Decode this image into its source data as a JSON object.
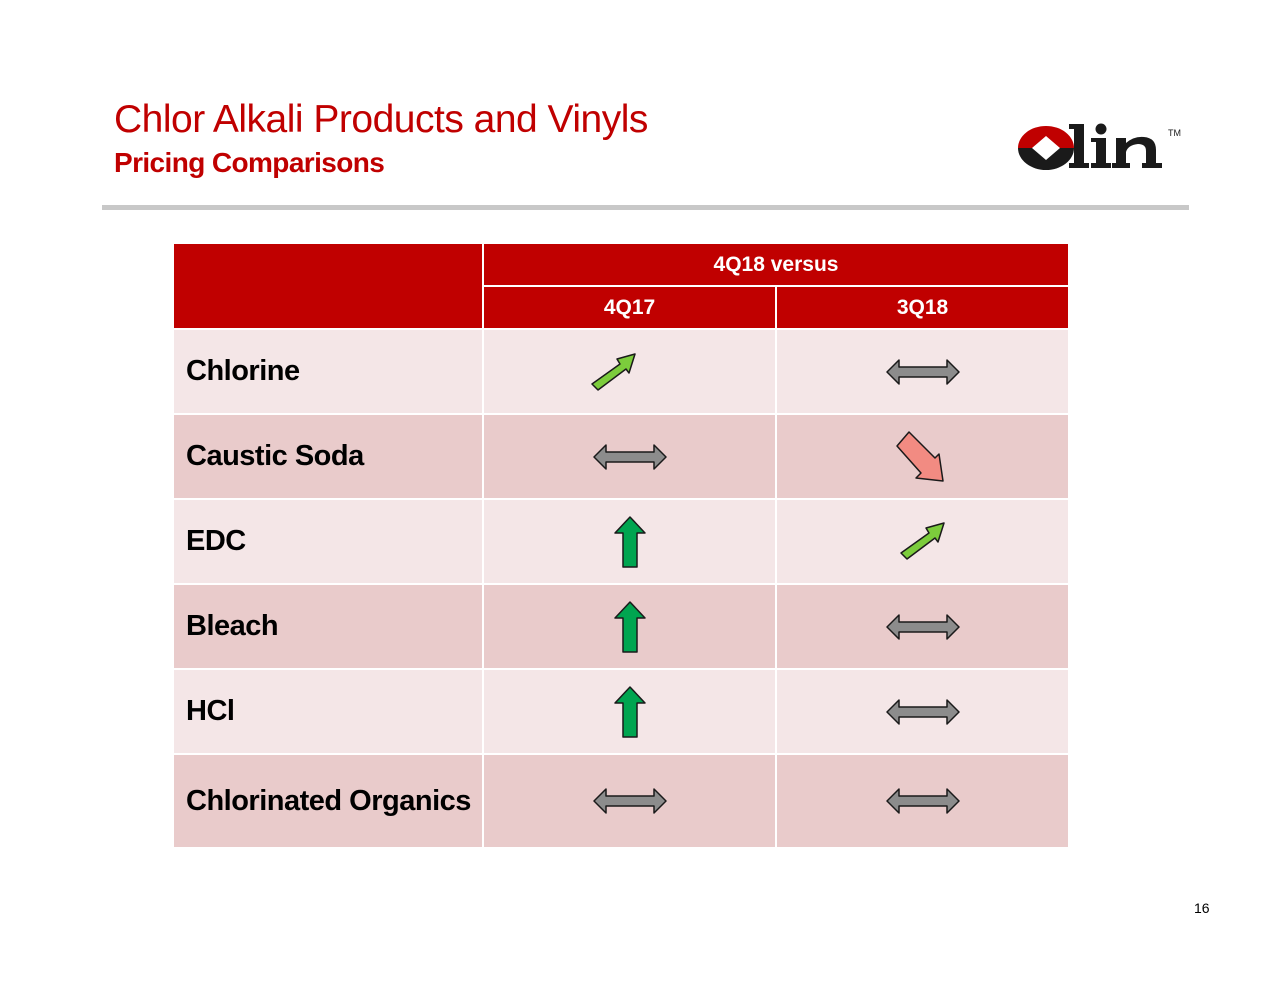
{
  "title": "Chlor Alkali Products and Vinyls",
  "subtitle": "Pricing Comparisons",
  "logo_text": "Olin",
  "logo_mark": "TM",
  "table": {
    "group_header": "4Q18 versus",
    "columns": [
      "4Q17",
      "3Q18"
    ],
    "rows": [
      {
        "product": "Chlorine",
        "vs_4q17": "up-right-arrow",
        "vs_3q18": "left-right-arrow"
      },
      {
        "product": "Caustic Soda",
        "vs_4q17": "left-right-arrow",
        "vs_3q18": "down-right-arrow"
      },
      {
        "product": "EDC",
        "vs_4q17": "up-arrow",
        "vs_3q18": "up-right-arrow"
      },
      {
        "product": "Bleach",
        "vs_4q17": "up-arrow",
        "vs_3q18": "left-right-arrow"
      },
      {
        "product": "HCl",
        "vs_4q17": "up-arrow",
        "vs_3q18": "left-right-arrow"
      },
      {
        "product": "Chlorinated Organics",
        "vs_4q17": "left-right-arrow",
        "vs_3q18": "left-right-arrow"
      }
    ]
  },
  "colors": {
    "brand_red": "#c00000",
    "row_light": "#f4e6e7",
    "row_dark": "#e9cbcb",
    "arrow_up": "#00a550",
    "arrow_up_right": "#7ccc3c",
    "arrow_flat": "#8c8c8c",
    "arrow_down_right": "#f28b82"
  },
  "page_number": "16"
}
